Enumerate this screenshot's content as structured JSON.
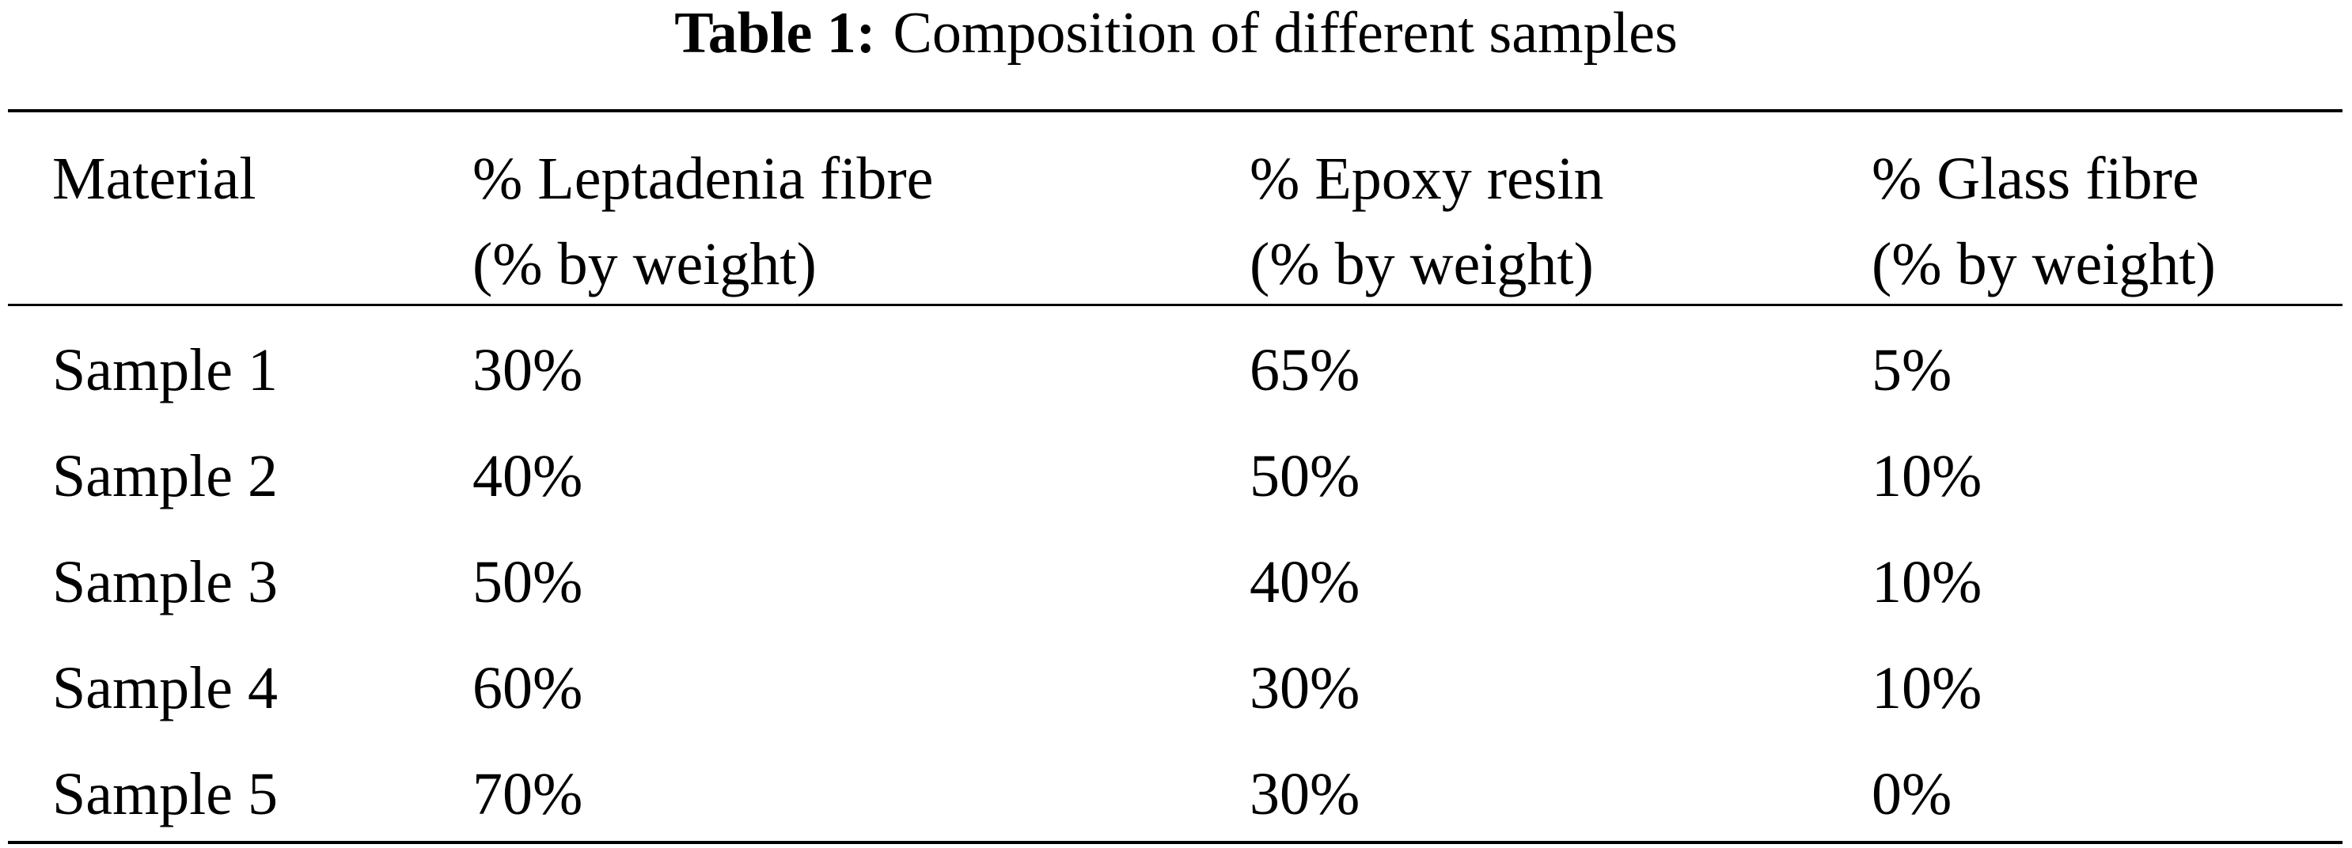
{
  "table": {
    "caption_label": "Table 1:",
    "caption_text": "Composition of different samples",
    "header": [
      [
        "Material"
      ],
      [
        "% Leptadenia fibre",
        "(% by weight)"
      ],
      [
        "% Epoxy resin",
        "(% by weight)"
      ],
      [
        "% Glass fibre",
        "(% by weight)"
      ]
    ],
    "rows": [
      [
        "Sample 1",
        "30%",
        "65%",
        "5%"
      ],
      [
        "Sample 2",
        "40%",
        "50%",
        "10%"
      ],
      [
        "Sample 3",
        "50%",
        "40%",
        "10%"
      ],
      [
        "Sample 4",
        "60%",
        "30%",
        "10%"
      ],
      [
        "Sample 5",
        "70%",
        "30%",
        "0%"
      ]
    ]
  }
}
